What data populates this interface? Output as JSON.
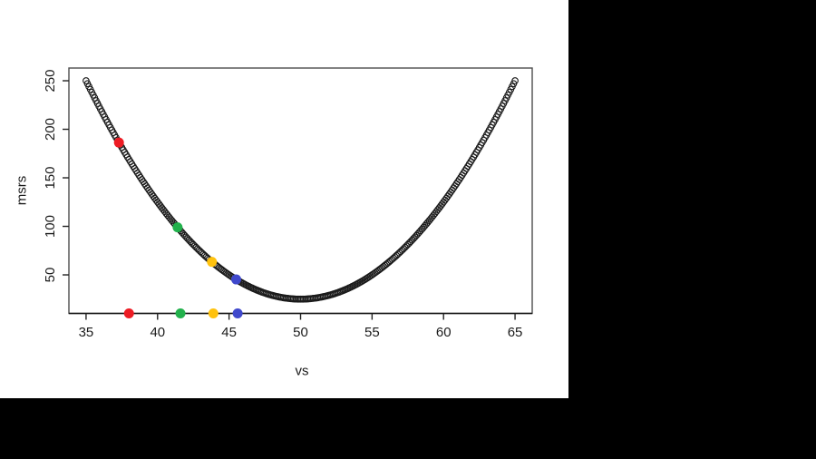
{
  "canvas": {
    "background_color": "#000000",
    "panel_color": "#ffffff"
  },
  "chart_data": {
    "type": "scatter",
    "title": "",
    "xlabel": "vs",
    "ylabel": "msrs",
    "x_ticks": [
      35,
      40,
      45,
      50,
      55,
      60,
      65
    ],
    "y_ticks": [
      50,
      100,
      150,
      200,
      250
    ],
    "xlim": [
      33.8,
      66.2
    ],
    "ylim": [
      10.3,
      263.1
    ],
    "grid": "off",
    "legend": "none",
    "curve": {
      "description": "dense open-circle markers tracing msrs = (vs - 50)^2 + 25",
      "quadratic": {
        "a": 1,
        "h": 50,
        "k": 25
      },
      "x_start": 35,
      "x_end": 65,
      "x_step": 0.1,
      "marker": "open-circle",
      "marker_color": "#1a1a1a",
      "endpoint_values": [
        [
          35,
          250
        ],
        [
          50,
          25
        ],
        [
          65,
          250
        ]
      ]
    },
    "highlight_points_on_curve": [
      {
        "name": "red",
        "x": 37.3,
        "y": 186.3,
        "color": "#ed1c24"
      },
      {
        "name": "green",
        "x": 41.4,
        "y": 99.0,
        "color": "#22b14c"
      },
      {
        "name": "orange",
        "x": 43.8,
        "y": 63.4,
        "color": "#ffc20e"
      },
      {
        "name": "blue",
        "x": 45.5,
        "y": 45.3,
        "color": "#3f48cc"
      }
    ],
    "rug_points_on_x_axis": [
      {
        "name": "red",
        "x": 38.0,
        "color": "#ed1c24"
      },
      {
        "name": "green",
        "x": 41.6,
        "color": "#22b14c"
      },
      {
        "name": "orange",
        "x": 43.9,
        "color": "#ffc20e"
      },
      {
        "name": "blue",
        "x": 45.6,
        "color": "#3f48cc"
      }
    ]
  }
}
